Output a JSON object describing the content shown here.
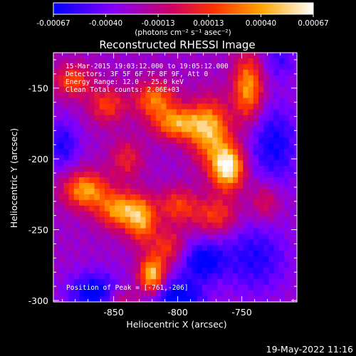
{
  "colorbar": {
    "tick_labels": [
      "-0.00067",
      "-0.00040",
      "-0.00013",
      "0.00013",
      "0.00040",
      "0.00067"
    ],
    "tick_values": [
      -0.00067,
      -0.0004,
      -0.00013,
      0.00013,
      0.0004,
      0.00067
    ],
    "range": [
      -0.00067,
      0.00067
    ],
    "units_label": "(photons cm⁻² s⁻¹ asec⁻²)",
    "colors": [
      "#0000ff",
      "#7f00ff",
      "#cc0066",
      "#ff3300",
      "#ffa500",
      "#ffffff"
    ]
  },
  "annotations": [
    "15-Mar-2015 19:03:12.000 to 19:05:12.000",
    "Detectors: 3F 5F 6F 7F 8F 9F, Att 0",
    "Energy Range: 12.0 - 25.0 keV",
    "Clean    Total counts: 2.06E+03"
  ],
  "peak_label": "Position of Peak = [-761,-206]",
  "footer_timestamp": "19-May-2022 11:16",
  "chart_data": {
    "type": "heatmap",
    "title": "Reconstructed RHESSI Image",
    "xlabel": "Heliocentric X (arcsec)",
    "ylabel": "Heliocentric Y (arcsec)",
    "xlim": [
      -897,
      -707
    ],
    "ylim": [
      -301,
      -125
    ],
    "xticks": [
      -850,
      -800,
      -750
    ],
    "yticks": [
      -300,
      -250,
      -200,
      -150
    ],
    "xtick_labels": [
      "-850",
      "-800",
      "-750"
    ],
    "ytick_labels": [
      "-300",
      "-250",
      "-200",
      "-150"
    ],
    "peak": [
      -761,
      -206
    ],
    "pixel_size": 4,
    "hotspots": [
      {
        "x": -761,
        "y": -206,
        "v": 1.0,
        "sx": 9,
        "sy": 11
      },
      {
        "x": -775,
        "y": -180,
        "v": 0.75,
        "sx": 11,
        "sy": 15
      },
      {
        "x": -820,
        "y": -282,
        "v": 0.85,
        "sx": 7,
        "sy": 9
      },
      {
        "x": -872,
        "y": -222,
        "v": 0.72,
        "sx": 12,
        "sy": 9
      },
      {
        "x": -845,
        "y": -236,
        "v": 0.72,
        "sx": 12,
        "sy": 9
      },
      {
        "x": -800,
        "y": -175,
        "v": 0.7,
        "sx": 13,
        "sy": 8
      },
      {
        "x": -818,
        "y": -158,
        "v": 0.6,
        "sx": 11,
        "sy": 9
      },
      {
        "x": -745,
        "y": -150,
        "v": 0.72,
        "sx": 8,
        "sy": 16
      },
      {
        "x": -828,
        "y": -244,
        "v": 0.62,
        "sx": 8,
        "sy": 11
      },
      {
        "x": -800,
        "y": -233,
        "v": 0.45,
        "sx": 11,
        "sy": 9
      },
      {
        "x": -882,
        "y": -145,
        "v": 0.5,
        "sx": 10,
        "sy": 8
      },
      {
        "x": -855,
        "y": -162,
        "v": 0.45,
        "sx": 10,
        "sy": 9
      },
      {
        "x": -770,
        "y": -240,
        "v": 0.45,
        "sx": 12,
        "sy": 9
      },
      {
        "x": -808,
        "y": -262,
        "v": 0.4,
        "sx": 9,
        "sy": 9
      },
      {
        "x": -840,
        "y": -200,
        "v": 0.35,
        "sx": 9,
        "sy": 10
      },
      {
        "x": -732,
        "y": -230,
        "v": 0.32,
        "sx": 8,
        "sy": 10
      },
      {
        "x": -845,
        "y": -300,
        "v": 0.28,
        "sx": 9,
        "sy": 7
      }
    ],
    "coldspots": [
      {
        "x": -800,
        "y": -300,
        "v": 0.55,
        "sx": 14,
        "sy": 11
      },
      {
        "x": -865,
        "y": -295,
        "v": 0.5,
        "sx": 14,
        "sy": 10
      },
      {
        "x": -725,
        "y": -190,
        "v": 0.4,
        "sx": 14,
        "sy": 20
      },
      {
        "x": -780,
        "y": -272,
        "v": 0.45,
        "sx": 12,
        "sy": 10
      },
      {
        "x": -740,
        "y": -270,
        "v": 0.35,
        "sx": 18,
        "sy": 18
      },
      {
        "x": -890,
        "y": -190,
        "v": 0.35,
        "sx": 9,
        "sy": 12
      },
      {
        "x": -720,
        "y": -130,
        "v": 0.25,
        "sx": 10,
        "sy": 10
      }
    ]
  }
}
